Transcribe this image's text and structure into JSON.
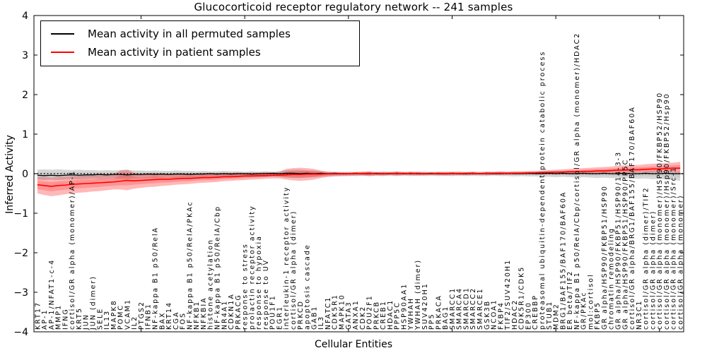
{
  "figure": {
    "title": "Glucocorticoid receptor regulatory network -- 241 samples",
    "xlabel": "Cellular Entities",
    "ylabel": "Inferred Activity"
  },
  "legend": {
    "position": "upper left",
    "entries": [
      {
        "label": "Mean activity in all permuted samples",
        "color": "#000000"
      },
      {
        "label": "Mean activity in patient samples",
        "color": "#ff0000"
      }
    ]
  },
  "chart_data": {
    "type": "line",
    "title": "Glucocorticoid receptor regulatory network -- 241 samples",
    "xlabel": "Cellular Entities",
    "ylabel": "Inferred Activity",
    "ylim": [
      -4,
      4
    ],
    "yticks": [
      -4,
      -3,
      -2,
      -1,
      0,
      1,
      2,
      3,
      4
    ],
    "xtick_index_positions": [
      15,
      30,
      45,
      60,
      75,
      90
    ],
    "grid": false,
    "legend_position": "upper left",
    "zero_line": {
      "style": "dotted",
      "color": "#000000",
      "y": 0
    },
    "colors": {
      "permuted_line": "#000000",
      "patient_line": "#ff0000",
      "permuted_band": "#808080",
      "patient_band": "#ff0000"
    },
    "categories": [
      "KRT17",
      "AP-1",
      "AP-1/NFAT1-c-4",
      "MMP1",
      "IFNG",
      "cortisol/GR alpha (monomer)/AP-1",
      "KRT5",
      "JUN",
      "JUN (dimer)",
      "SELE",
      "IL13",
      "MAPK8",
      "POMC",
      "VCAM1",
      "IL2",
      "PTGS2",
      "IFNB1",
      "NF-kappa B1 p50/RelA",
      "BAX",
      "KRT14",
      "CGA",
      "FOS",
      "NF-kappa B1 p50/RelA/PKAc",
      "NFKB1",
      "NFKBIA",
      "histone acetylation",
      "NF-kappa B1 p50/RelA/Cbp",
      "NR4A1",
      "CDKN1A",
      "PRKACG",
      "response to stress",
      "prolactin receptor activity",
      "response to hypoxia",
      "response to UV",
      "POU1F1",
      "EGR1",
      "interleukin-1 receptor activity",
      "cortisol/GR alpha (dimer)",
      "PRKCD",
      "apoptosis cascade",
      "GAB1",
      "IL3",
      "NFATC1",
      "CDK5R1",
      "MAPK10",
      "GATA3",
      "ANXA1",
      "CDK2",
      "POU2F1",
      "PRKCB",
      "CREB1",
      "HDAC1",
      "PPP5C",
      "HSP90AA1",
      "YWHAH",
      "YWHAH (dimer)",
      "SUV420H1",
      "PP5",
      "PRKACA",
      "BAG1",
      "SMARCC1",
      "SMARCA4",
      "SMARCD1",
      "SMARCC2",
      "SMARCE1",
      "GSK3B",
      "NCOA1",
      "FKBP4",
      "TIF2/SUV420H1",
      "HDAC2",
      "CDK5R1/CDK5",
      "EP300",
      "CREBBP",
      "proteasomal ubiquitin-dependent protein catabolic process",
      "STUB1",
      "MDM2",
      "BRG1/BAF155/BAF170/BAF60A",
      "ER beta/TIF2",
      "NF-kappa B1 p50/RelA/Cbp/cortisol/GR alpha (monomer)/HDAC2",
      "GR/PKAc",
      "mol:cortisol",
      "FKBP5",
      "GR alpha/HSP90/FKBP51/HSP90",
      "chromatin remodeling",
      "GR alpha/HSP90/FKBP51/HSP90/14-3-3",
      "GR alpha/HSP90/FKBP51/HSP90/PP5C",
      "cortisol/GR alpha/BRG1/BAF155/BAF170/BAF60A",
      "NR3C1",
      "cortisol/GR alpha (dimer)/TIF2",
      "cortisol/GR alpha (dimer)",
      "cortisol/GR alpha (monomer)/HSP90/FKBP52/HSP90",
      "cortisol/GR alpha (monomer)/Hsp90/FKBP52/Hsp90",
      "cortisol/GR alpha (monomer)/Src-1",
      "cortisol/GR alpha (monomer)"
    ],
    "series": [
      {
        "name": "Mean activity in all permuted samples",
        "color": "#000000",
        "values": [
          -0.04,
          -0.05,
          -0.04,
          -0.05,
          -0.04,
          -0.03,
          -0.04,
          -0.03,
          -0.03,
          -0.02,
          -0.03,
          -0.02,
          -0.02,
          -0.03,
          -0.02,
          -0.02,
          -0.01,
          -0.02,
          -0.01,
          -0.02,
          -0.01,
          -0.01,
          -0.02,
          -0.01,
          -0.01,
          0.0,
          -0.01,
          0.0,
          -0.01,
          0.0,
          0.0,
          -0.01,
          0.0,
          0.0,
          0.01,
          0.0,
          0.01,
          0.01,
          0.0,
          0.01,
          0.0,
          0.01,
          0.0,
          0.01,
          0.0,
          0.0,
          0.01,
          0.0,
          0.0,
          0.01,
          0.0,
          0.0,
          0.01,
          0.0,
          0.01,
          0.0,
          0.0,
          0.01,
          0.0,
          0.0,
          0.01,
          0.0,
          0.0,
          0.01,
          0.0,
          0.01,
          0.0,
          0.0,
          0.01,
          0.0,
          0.0,
          0.01,
          0.0,
          0.0,
          0.01,
          0.0,
          0.01,
          0.0,
          0.0,
          0.01,
          0.0,
          0.0,
          0.01,
          0.0,
          0.0,
          0.01,
          0.0,
          0.0,
          0.01,
          0.0,
          0.0,
          0.01,
          0.0,
          0.0
        ]
      },
      {
        "name": "Mean activity in patient samples",
        "color": "#ff0000",
        "values": [
          -0.28,
          -0.3,
          -0.32,
          -0.3,
          -0.29,
          -0.27,
          -0.26,
          -0.25,
          -0.24,
          -0.23,
          -0.22,
          -0.21,
          -0.19,
          -0.17,
          -0.18,
          -0.17,
          -0.16,
          -0.15,
          -0.14,
          -0.14,
          -0.13,
          -0.12,
          -0.12,
          -0.11,
          -0.1,
          -0.1,
          -0.09,
          -0.08,
          -0.08,
          -0.07,
          -0.06,
          -0.06,
          -0.05,
          -0.05,
          -0.04,
          -0.04,
          -0.03,
          -0.02,
          -0.02,
          -0.01,
          -0.01,
          -0.01,
          0.0,
          0.0,
          0.0,
          0.0,
          0.01,
          0.0,
          0.01,
          0.0,
          0.0,
          0.01,
          0.0,
          0.01,
          0.0,
          0.01,
          0.0,
          0.0,
          0.01,
          0.0,
          0.01,
          0.0,
          0.01,
          0.01,
          0.0,
          0.01,
          0.01,
          0.01,
          0.01,
          0.01,
          0.01,
          0.02,
          0.02,
          0.03,
          0.03,
          0.04,
          0.04,
          0.05,
          0.05,
          0.06,
          0.06,
          0.07,
          0.07,
          0.08,
          0.09,
          0.09,
          0.1,
          0.1,
          0.11,
          0.12,
          0.12,
          0.13,
          0.14,
          0.14
        ]
      }
    ],
    "bands": [
      {
        "name": "permuted samples range",
        "color": "#808080",
        "upper": [
          0.1,
          0.11,
          0.1,
          0.11,
          0.1,
          0.09,
          0.1,
          0.09,
          0.09,
          0.08,
          0.09,
          0.08,
          0.09,
          0.1,
          0.08,
          0.08,
          0.07,
          0.08,
          0.07,
          0.07,
          0.08,
          0.07,
          0.07,
          0.06,
          0.07,
          0.06,
          0.06,
          0.07,
          0.06,
          0.06,
          0.05,
          0.06,
          0.05,
          0.06,
          0.05,
          0.06,
          0.09,
          0.1,
          0.1,
          0.09,
          0.08,
          0.06,
          0.05,
          0.05,
          0.04,
          0.05,
          0.04,
          0.05,
          0.05,
          0.04,
          0.05,
          0.04,
          0.05,
          0.04,
          0.05,
          0.04,
          0.05,
          0.04,
          0.05,
          0.04,
          0.05,
          0.05,
          0.04,
          0.05,
          0.04,
          0.05,
          0.04,
          0.05,
          0.04,
          0.05,
          0.05,
          0.04,
          0.05,
          0.05,
          0.06,
          0.05,
          0.06,
          0.06,
          0.05,
          0.06,
          0.06,
          0.05,
          0.06,
          0.06,
          0.07,
          0.06,
          0.07,
          0.06,
          0.07,
          0.08,
          0.07,
          0.08,
          0.07,
          0.06
        ],
        "lower": [
          -0.15,
          -0.16,
          -0.15,
          -0.16,
          -0.15,
          -0.14,
          -0.15,
          -0.14,
          -0.13,
          -0.14,
          -0.13,
          -0.12,
          -0.13,
          -0.14,
          -0.12,
          -0.12,
          -0.11,
          -0.12,
          -0.11,
          -0.1,
          -0.11,
          -0.1,
          -0.1,
          -0.09,
          -0.1,
          -0.09,
          -0.09,
          -0.08,
          -0.09,
          -0.08,
          -0.08,
          -0.07,
          -0.08,
          -0.07,
          -0.07,
          -0.08,
          -0.1,
          -0.11,
          -0.11,
          -0.1,
          -0.09,
          -0.08,
          -0.07,
          -0.06,
          -0.06,
          -0.05,
          -0.06,
          -0.05,
          -0.06,
          -0.05,
          -0.06,
          -0.05,
          -0.06,
          -0.05,
          -0.06,
          -0.05,
          -0.06,
          -0.05,
          -0.06,
          -0.05,
          -0.06,
          -0.05,
          -0.06,
          -0.05,
          -0.06,
          -0.06,
          -0.05,
          -0.06,
          -0.06,
          -0.07,
          -0.06,
          -0.07,
          -0.07,
          -0.08,
          -0.08,
          -0.09,
          -0.08,
          -0.09,
          -0.1,
          -0.09,
          -0.1,
          -0.11,
          -0.1,
          -0.11,
          -0.12,
          -0.11,
          -0.12,
          -0.13,
          -0.12,
          -0.14,
          -0.13,
          -0.15,
          -0.16,
          -0.18
        ]
      },
      {
        "name": "patient samples range",
        "color": "#ff0000",
        "upper": [
          -0.08,
          -0.09,
          -0.1,
          -0.09,
          -0.08,
          -0.07,
          -0.06,
          -0.05,
          -0.05,
          -0.04,
          -0.03,
          -0.02,
          0.08,
          0.1,
          0.02,
          -0.02,
          0.0,
          0.02,
          -0.01,
          -0.02,
          -0.01,
          0.0,
          0.01,
          0.0,
          0.01,
          0.02,
          0.01,
          0.02,
          0.02,
          0.03,
          0.02,
          0.03,
          0.03,
          0.04,
          0.03,
          0.05,
          0.12,
          0.14,
          0.15,
          0.14,
          0.12,
          0.08,
          0.05,
          0.04,
          0.04,
          0.03,
          0.04,
          0.05,
          0.06,
          0.04,
          0.05,
          0.04,
          0.06,
          0.04,
          0.05,
          0.05,
          0.04,
          0.04,
          0.04,
          0.05,
          0.04,
          0.05,
          0.04,
          0.05,
          0.04,
          0.05,
          0.05,
          0.06,
          0.05,
          0.06,
          0.06,
          0.07,
          0.07,
          0.08,
          0.09,
          0.1,
          0.11,
          0.12,
          0.13,
          0.14,
          0.15,
          0.16,
          0.17,
          0.18,
          0.2,
          0.21,
          0.22,
          0.22,
          0.24,
          0.25,
          0.26,
          0.27,
          0.28,
          0.3
        ],
        "lower": [
          -0.5,
          -0.54,
          -0.57,
          -0.55,
          -0.52,
          -0.5,
          -0.48,
          -0.47,
          -0.45,
          -0.44,
          -0.42,
          -0.4,
          -0.4,
          -0.42,
          -0.38,
          -0.36,
          -0.34,
          -0.33,
          -0.31,
          -0.3,
          -0.28,
          -0.27,
          -0.26,
          -0.24,
          -0.23,
          -0.22,
          -0.21,
          -0.19,
          -0.18,
          -0.17,
          -0.16,
          -0.15,
          -0.14,
          -0.13,
          -0.12,
          -0.12,
          -0.15,
          -0.17,
          -0.18,
          -0.17,
          -0.15,
          -0.11,
          -0.08,
          -0.07,
          -0.06,
          -0.06,
          -0.05,
          -0.05,
          -0.06,
          -0.05,
          -0.05,
          -0.04,
          -0.05,
          -0.04,
          -0.04,
          -0.05,
          -0.04,
          -0.04,
          -0.04,
          -0.05,
          -0.04,
          -0.04,
          -0.04,
          -0.04,
          -0.03,
          -0.04,
          -0.03,
          -0.03,
          -0.03,
          -0.02,
          -0.02,
          -0.02,
          -0.01,
          -0.01,
          0.0,
          0.0,
          0.0,
          0.0,
          0.0,
          0.01,
          0.01,
          0.01,
          0.01,
          0.02,
          0.02,
          0.02,
          0.02,
          0.03,
          0.03,
          0.03,
          0.03,
          0.04,
          0.03,
          0.02
        ]
      }
    ]
  }
}
